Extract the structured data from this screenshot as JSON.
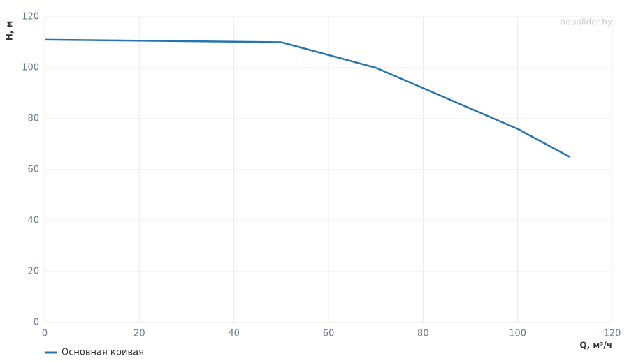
{
  "chart_data": {
    "type": "line",
    "x": [
      0,
      50,
      70,
      100,
      111
    ],
    "series": [
      {
        "name": "Основная кривая",
        "color": "#2874b0",
        "values": [
          111,
          110,
          100,
          76,
          65
        ]
      }
    ],
    "xlim": [
      0,
      120
    ],
    "xticks": [
      0,
      20,
      40,
      60,
      80,
      100,
      120
    ],
    "ylim": [
      0,
      120
    ],
    "yticks": [
      0,
      20,
      40,
      60,
      80,
      100,
      120
    ],
    "x_label": "Q, м³/ч",
    "y_label": "H, м",
    "watermark": "aqualider.by",
    "grid": true,
    "legend": "bottom-left"
  }
}
